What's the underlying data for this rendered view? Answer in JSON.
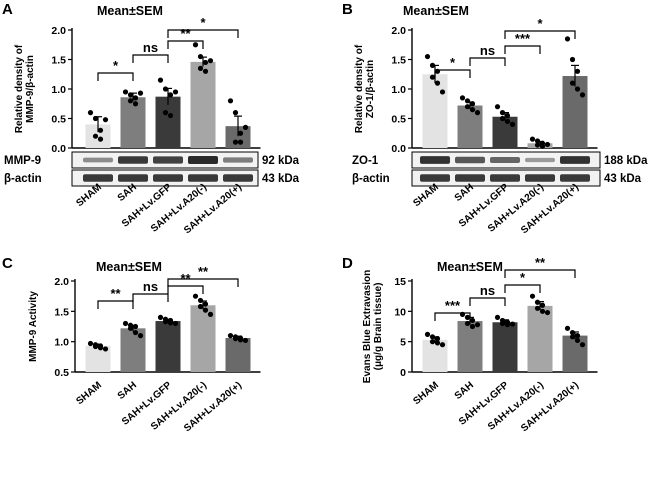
{
  "figure": {
    "categories": [
      "SHAM",
      "SAH",
      "SAH+Lv.GFP",
      "SAH+Lv.A20(-)",
      "SAH+Lv.A20(+)"
    ],
    "colors": {
      "bars": [
        "#e3e3e3",
        "#7e7e7e",
        "#3a3a3a",
        "#a6a6a6",
        "#6a6a6a"
      ],
      "axis": "#000000",
      "points": "#000000",
      "blot": "#2a2a2a"
    }
  },
  "chart_data": [
    {
      "panel": "A",
      "type": "bar",
      "title": "Mean±SEM",
      "ylabel": "Relative density of MMP-9/β-actin",
      "ylim": [
        0,
        2.0
      ],
      "yticks": [
        0.0,
        0.5,
        1.0,
        1.5,
        2.0
      ],
      "ytick_labels": [
        "0.0",
        "0.5",
        "1.0",
        "1.5",
        "2.0"
      ],
      "categories": [
        "SHAM",
        "SAH",
        "SAH+Lv.GFP",
        "SAH+Lv.A20(-)",
        "SAH+Lv.A20(+)"
      ],
      "values": [
        0.4,
        0.86,
        0.87,
        1.46,
        0.37
      ],
      "errors": [
        0.13,
        0.07,
        0.14,
        0.08,
        0.17
      ],
      "points": [
        [
          0.6,
          0.5,
          0.3,
          0.2,
          0.15,
          0.48
        ],
        [
          0.95,
          0.9,
          0.85,
          0.8,
          0.75,
          0.93
        ],
        [
          1.15,
          1.0,
          0.9,
          0.6,
          0.55,
          0.95
        ],
        [
          1.75,
          1.55,
          1.45,
          1.35,
          1.3,
          1.48
        ],
        [
          0.8,
          0.6,
          0.25,
          0.1,
          0.1,
          0.35
        ]
      ],
      "comparisons": [
        {
          "from": 0,
          "to": 1,
          "label": "*"
        },
        {
          "from": 1,
          "to": 2,
          "label": "ns"
        },
        {
          "from": 2,
          "to": 3,
          "label": "**"
        },
        {
          "from": 2,
          "to": 4,
          "label": "*"
        }
      ],
      "blot_labels": [
        "MMP-9",
        "β-actin"
      ],
      "blot_sizes": [
        "92 kDa",
        "43 kDa"
      ],
      "blot_intensity": [
        [
          0.35,
          0.9,
          0.85,
          1.0,
          0.45
        ],
        [
          0.9,
          0.9,
          0.9,
          0.9,
          0.9
        ]
      ]
    },
    {
      "panel": "B",
      "type": "bar",
      "title": "Mean±SEM",
      "ylabel": "Relative density of ZO-1/β-actin",
      "ylim": [
        0,
        2.0
      ],
      "yticks": [
        0.0,
        0.5,
        1.0,
        1.5,
        2.0
      ],
      "ytick_labels": [
        "0.0",
        "0.5",
        "1.0",
        "1.5",
        "2.0"
      ],
      "categories": [
        "SHAM",
        "SAH",
        "SAH+Lv.GFP",
        "SAH+Lv.A20(-)",
        "SAH+Lv.A20(+)"
      ],
      "values": [
        1.25,
        0.72,
        0.53,
        0.08,
        1.22
      ],
      "errors": [
        0.15,
        0.06,
        0.07,
        0.03,
        0.18
      ],
      "points": [
        [
          1.55,
          1.4,
          1.3,
          1.2,
          1.1,
          0.95
        ],
        [
          0.85,
          0.8,
          0.75,
          0.7,
          0.65,
          0.6
        ],
        [
          0.7,
          0.6,
          0.55,
          0.5,
          0.45,
          0.4
        ],
        [
          0.15,
          0.12,
          0.08,
          0.05,
          0.03,
          0.06
        ],
        [
          1.85,
          1.5,
          1.3,
          1.1,
          1.0,
          0.9
        ]
      ],
      "comparisons": [
        {
          "from": 0,
          "to": 1,
          "label": "*"
        },
        {
          "from": 1,
          "to": 2,
          "label": "ns"
        },
        {
          "from": 2,
          "to": 3,
          "label": "***"
        },
        {
          "from": 2,
          "to": 4,
          "label": "*"
        }
      ],
      "blot_labels": [
        "ZO-1",
        "β-actin"
      ],
      "blot_sizes": [
        "188 kDa",
        "43 kDa"
      ],
      "blot_intensity": [
        [
          0.95,
          0.7,
          0.6,
          0.25,
          0.95
        ],
        [
          0.9,
          0.9,
          0.9,
          0.9,
          0.9
        ]
      ]
    },
    {
      "panel": "C",
      "type": "bar",
      "title": "Mean±SEM",
      "ylabel": "MMP-9 Activity",
      "ylim": [
        0.5,
        2.0
      ],
      "yticks": [
        0.5,
        1.0,
        1.5,
        2.0
      ],
      "ytick_labels": [
        "0.5",
        "1.0",
        "1.5",
        "2.0"
      ],
      "categories": [
        "SHAM",
        "SAH",
        "SAH+Lv.GFP",
        "SAH+Lv.A20(-)",
        "SAH+Lv.A20(+)"
      ],
      "values": [
        0.93,
        1.22,
        1.34,
        1.6,
        1.06
      ],
      "errors": [
        0.03,
        0.05,
        0.03,
        0.07,
        0.03
      ],
      "points": [
        [
          0.97,
          0.95,
          0.93,
          0.92,
          0.9,
          0.88
        ],
        [
          1.3,
          1.27,
          1.25,
          1.22,
          1.15,
          1.1
        ],
        [
          1.4,
          1.37,
          1.35,
          1.33,
          1.31,
          1.3
        ],
        [
          1.75,
          1.68,
          1.62,
          1.58,
          1.52,
          1.45
        ],
        [
          1.1,
          1.08,
          1.06,
          1.05,
          1.03,
          1.02
        ]
      ],
      "comparisons": [
        {
          "from": 0,
          "to": 1,
          "label": "**"
        },
        {
          "from": 1,
          "to": 2,
          "label": "ns"
        },
        {
          "from": 2,
          "to": 3,
          "label": "**"
        },
        {
          "from": 2,
          "to": 4,
          "label": "**"
        }
      ]
    },
    {
      "panel": "D",
      "type": "bar",
      "title": "Mean±SEM",
      "ylabel": "Evans Blue Extravasion (μg/g Brain tissue)",
      "ylim": [
        0,
        15
      ],
      "yticks": [
        0,
        5,
        10,
        15
      ],
      "ytick_labels": [
        "0",
        "5",
        "10",
        "15"
      ],
      "categories": [
        "SHAM",
        "SAH",
        "SAH+Lv.GFP",
        "SAH+Lv.A20(-)",
        "SAH+Lv.A20(+)"
      ],
      "values": [
        5.3,
        8.4,
        8.2,
        10.9,
        6.0
      ],
      "errors": [
        0.5,
        0.6,
        0.4,
        0.7,
        0.6
      ],
      "points": [
        [
          6.2,
          5.8,
          5.5,
          5.0,
          4.8,
          4.5
        ],
        [
          9.5,
          9.0,
          8.5,
          8.0,
          7.5,
          7.8
        ],
        [
          9.0,
          8.5,
          8.2,
          8.0,
          7.8,
          7.9
        ],
        [
          12.5,
          11.5,
          11.0,
          10.5,
          10.0,
          9.8
        ],
        [
          7.2,
          6.5,
          6.0,
          5.8,
          5.2,
          4.5
        ]
      ],
      "comparisons": [
        {
          "from": 0,
          "to": 1,
          "label": "***"
        },
        {
          "from": 1,
          "to": 2,
          "label": "ns"
        },
        {
          "from": 2,
          "to": 3,
          "label": "*"
        },
        {
          "from": 2,
          "to": 4,
          "label": "**"
        }
      ]
    }
  ]
}
